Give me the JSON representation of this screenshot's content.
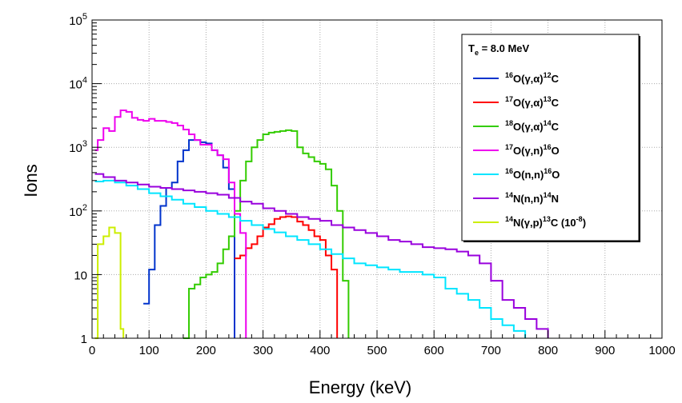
{
  "chart_data": {
    "type": "line",
    "style": "step",
    "xlabel": "Energy (keV)",
    "ylabel": "Ions",
    "xlim": [
      0,
      1000
    ],
    "ylim": [
      1,
      100000
    ],
    "yscale": "log",
    "grid": true,
    "x_ticks": [
      "0",
      "100",
      "200",
      "300",
      "400",
      "500",
      "600",
      "700",
      "800",
      "900",
      "1000"
    ],
    "y_ticks": [
      {
        "base": "1",
        "exp": ""
      },
      {
        "base": "10",
        "exp": ""
      },
      {
        "base": "10",
        "exp": "2"
      },
      {
        "base": "10",
        "exp": "3"
      },
      {
        "base": "10",
        "exp": "4"
      },
      {
        "base": "10",
        "exp": "5"
      }
    ],
    "legend_position": "top-right",
    "legend_header": {
      "main": "T",
      "sub": "e",
      "rest": " = 8.0 MeV"
    },
    "series": [
      {
        "label": [
          {
            "t": "16",
            "s": "sup"
          },
          {
            "t": "O(γ,α)"
          },
          {
            "t": "12",
            "s": "sup"
          },
          {
            "t": "C"
          }
        ],
        "color": "#0033cc",
        "x": [
          90,
          100,
          110,
          120,
          130,
          140,
          150,
          160,
          170,
          180,
          190,
          200,
          210,
          220,
          230,
          240,
          250
        ],
        "y": [
          3.5,
          12,
          60,
          120,
          230,
          280,
          600,
          900,
          1300,
          1300,
          1200,
          1150,
          900,
          750,
          480,
          220,
          1
        ]
      },
      {
        "label": [
          {
            "t": "17",
            "s": "sup"
          },
          {
            "t": "O(γ,α)"
          },
          {
            "t": "13",
            "s": "sup"
          },
          {
            "t": "C"
          }
        ],
        "color": "#ff0000",
        "x": [
          250,
          260,
          270,
          280,
          290,
          300,
          310,
          320,
          330,
          340,
          350,
          360,
          370,
          380,
          390,
          400,
          410,
          420,
          430
        ],
        "y": [
          18,
          20,
          26,
          30,
          40,
          55,
          62,
          75,
          80,
          82,
          80,
          68,
          60,
          50,
          40,
          35,
          20,
          12,
          1
        ]
      },
      {
        "label": [
          {
            "t": "18",
            "s": "sup"
          },
          {
            "t": "O(γ,α)"
          },
          {
            "t": "14",
            "s": "sup"
          },
          {
            "t": "C"
          }
        ],
        "color": "#33cc00",
        "x": [
          160,
          170,
          180,
          190,
          200,
          210,
          220,
          230,
          240,
          250,
          260,
          270,
          280,
          290,
          300,
          310,
          320,
          330,
          340,
          350,
          360,
          370,
          380,
          390,
          400,
          410,
          420,
          430,
          440,
          450
        ],
        "y": [
          1,
          6,
          7,
          9,
          10,
          11,
          15,
          25,
          40,
          100,
          300,
          600,
          1000,
          1300,
          1600,
          1700,
          1750,
          1800,
          1850,
          1800,
          1000,
          800,
          700,
          600,
          550,
          450,
          250,
          100,
          8,
          1
        ]
      },
      {
        "label": [
          {
            "t": "17",
            "s": "sup"
          },
          {
            "t": "O(γ,n)"
          },
          {
            "t": "16",
            "s": "sup"
          },
          {
            "t": "O"
          }
        ],
        "color": "#ee00ee",
        "x": [
          5,
          10,
          20,
          30,
          40,
          50,
          60,
          70,
          80,
          90,
          100,
          110,
          120,
          130,
          140,
          150,
          160,
          170,
          180,
          190,
          200,
          210,
          220,
          230,
          240,
          250,
          260,
          270
        ],
        "y": [
          900,
          1300,
          2000,
          1800,
          3000,
          3800,
          3600,
          2900,
          2700,
          2600,
          2800,
          2600,
          2600,
          2500,
          2400,
          2200,
          1900,
          1600,
          1300,
          1100,
          1100,
          900,
          750,
          650,
          280,
          90,
          45,
          1
        ]
      },
      {
        "label": [
          {
            "t": "16",
            "s": "sup"
          },
          {
            "t": "O(n,n)"
          },
          {
            "t": "16",
            "s": "sup"
          },
          {
            "t": "O"
          }
        ],
        "color": "#00e5ff",
        "x": [
          5,
          20,
          40,
          60,
          80,
          100,
          120,
          140,
          160,
          180,
          200,
          220,
          240,
          260,
          280,
          300,
          320,
          340,
          360,
          380,
          400,
          420,
          440,
          460,
          480,
          500,
          520,
          540,
          560,
          580,
          600,
          620,
          640,
          660,
          680,
          700,
          720,
          740,
          760
        ],
        "y": [
          290,
          300,
          280,
          250,
          220,
          190,
          170,
          150,
          130,
          115,
          100,
          90,
          80,
          70,
          60,
          52,
          46,
          40,
          35,
          30,
          25,
          21,
          18,
          15,
          14,
          13,
          12,
          11,
          11,
          10,
          9,
          6,
          5,
          4,
          3,
          2,
          1.6,
          1.3,
          1
        ]
      },
      {
        "label": [
          {
            "t": "14",
            "s": "sup"
          },
          {
            "t": "N(n,n)"
          },
          {
            "t": "14",
            "s": "sup"
          },
          {
            "t": "N"
          }
        ],
        "color": "#9900dd",
        "x": [
          5,
          20,
          40,
          60,
          80,
          100,
          120,
          140,
          160,
          180,
          200,
          220,
          240,
          260,
          280,
          300,
          320,
          340,
          360,
          380,
          400,
          420,
          440,
          460,
          480,
          500,
          520,
          540,
          560,
          580,
          600,
          620,
          640,
          660,
          680,
          700,
          720,
          740,
          760,
          780,
          800
        ],
        "y": [
          380,
          340,
          300,
          280,
          260,
          240,
          230,
          220,
          210,
          200,
          190,
          180,
          160,
          140,
          130,
          110,
          100,
          90,
          80,
          75,
          70,
          60,
          55,
          50,
          45,
          40,
          35,
          33,
          30,
          27,
          26,
          25,
          23,
          20,
          15,
          8,
          4,
          3,
          2,
          1.4,
          1
        ]
      },
      {
        "label": [
          {
            "t": "14",
            "s": "sup"
          },
          {
            "t": "N(γ,p)"
          },
          {
            "t": "13",
            "s": "sup"
          },
          {
            "t": "C (10"
          },
          {
            "t": "-8",
            "s": "sup"
          },
          {
            "t": ")"
          }
        ],
        "color": "#ccee00",
        "x": [
          5,
          10,
          20,
          30,
          40,
          50,
          55
        ],
        "y": [
          1,
          30,
          40,
          55,
          45,
          1.4,
          1
        ]
      }
    ]
  }
}
